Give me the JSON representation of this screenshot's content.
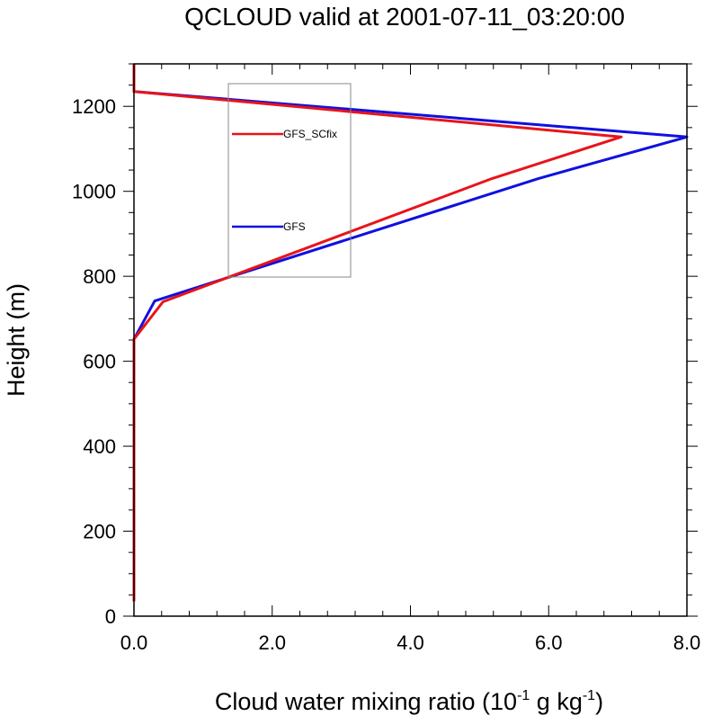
{
  "chart_data": {
    "type": "line",
    "title": "QCLOUD valid at 2001-07-11_03:20:00",
    "xlabel": {
      "main": "Cloud water mixing ratio (10",
      "exp1": "-1",
      "mid": " g kg",
      "exp2": "-1",
      "end": ")"
    },
    "ylabel": "Height (m)",
    "xlim": [
      0,
      8
    ],
    "ylim": [
      0,
      1300
    ],
    "x_ticks": [
      0,
      2,
      4,
      6,
      8
    ],
    "x_tick_labels": [
      "0.0",
      "2.0",
      "4.0",
      "6.0",
      "8.0"
    ],
    "y_ticks": [
      0,
      200,
      400,
      600,
      800,
      1000,
      1200
    ],
    "y_tick_labels": [
      "0",
      "200",
      "400",
      "600",
      "800",
      "1000",
      "1200"
    ],
    "legend": "upper-left-inside",
    "series": [
      {
        "name": "GFS_SCfix",
        "color": "#e8141a",
        "points": [
          [
            0,
            35
          ],
          [
            0,
            652
          ],
          [
            0.42,
            740
          ],
          [
            5.18,
            1030
          ],
          [
            7.05,
            1128
          ],
          [
            0,
            1235
          ],
          [
            0,
            1300
          ]
        ]
      },
      {
        "name": "GFS",
        "color": "#1010e0",
        "points": [
          [
            0,
            35
          ],
          [
            0,
            652
          ],
          [
            0.3,
            742
          ],
          [
            5.85,
            1030
          ],
          [
            8.0,
            1128
          ],
          [
            0,
            1235
          ],
          [
            0,
            1300
          ]
        ]
      }
    ]
  }
}
